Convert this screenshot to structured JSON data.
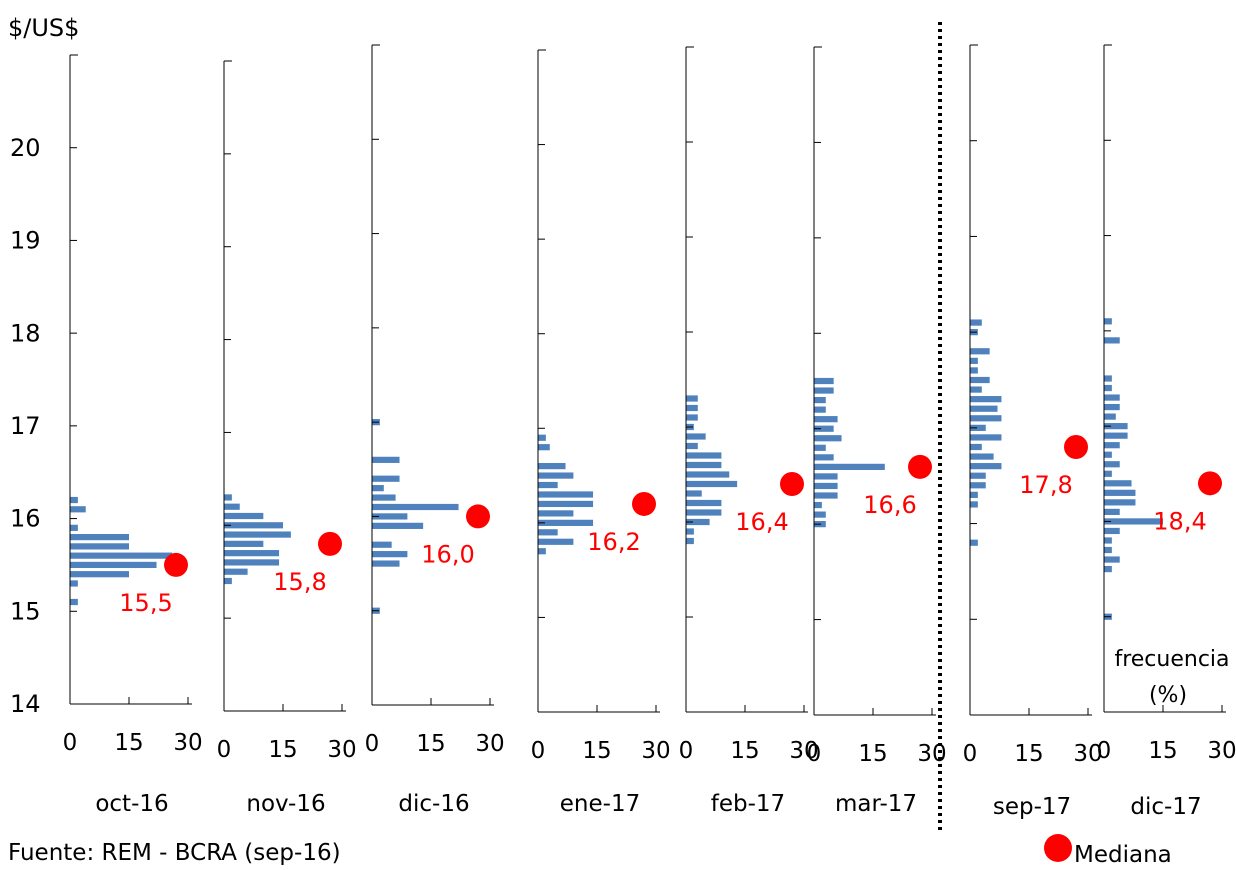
{
  "chart_data": {
    "type": "bar",
    "orientation": "horizontal-histograms",
    "ylabel": "$/US$",
    "yticks": [
      14,
      15,
      16,
      17,
      18,
      19,
      20
    ],
    "xticks": [
      0,
      15,
      30
    ],
    "xlabel": "frecuencia (%)",
    "xlabel_lines": [
      "frecuencia",
      "(%)"
    ],
    "source": "Fuente: REM - BCRA (sep-16)",
    "legend": {
      "label": "Mediana",
      "color": "#ff0000",
      "placement": "bottom-right"
    },
    "colors": {
      "bars": "#4f81bd",
      "median": "#ff0000",
      "axis": "#000000"
    },
    "panels": [
      {
        "name": "oct-16",
        "ylim": [
          14,
          21
        ],
        "median": 15.5,
        "median_label": "15,5",
        "bins": [
          {
            "y": 15.1,
            "v": 2
          },
          {
            "y": 15.3,
            "v": 2
          },
          {
            "y": 15.4,
            "v": 15
          },
          {
            "y": 15.5,
            "v": 22
          },
          {
            "y": 15.6,
            "v": 26
          },
          {
            "y": 15.7,
            "v": 15
          },
          {
            "y": 15.8,
            "v": 15
          },
          {
            "y": 15.9,
            "v": 2
          },
          {
            "y": 16.1,
            "v": 4
          },
          {
            "y": 16.2,
            "v": 2
          }
        ]
      },
      {
        "name": "nov-16",
        "ylim": [
          14,
          21
        ],
        "median": 15.8,
        "median_label": "15,8",
        "bins": [
          {
            "y": 15.4,
            "v": 2
          },
          {
            "y": 15.5,
            "v": 6
          },
          {
            "y": 15.6,
            "v": 14
          },
          {
            "y": 15.7,
            "v": 14
          },
          {
            "y": 15.8,
            "v": 10
          },
          {
            "y": 15.9,
            "v": 17
          },
          {
            "y": 16.0,
            "v": 15
          },
          {
            "y": 16.1,
            "v": 10
          },
          {
            "y": 16.2,
            "v": 4
          },
          {
            "y": 16.3,
            "v": 2
          }
        ]
      },
      {
        "name": "dic-16",
        "ylim": [
          14,
          21
        ],
        "median": 16.0,
        "median_label": "16,0",
        "bins": [
          {
            "y": 15.0,
            "v": 2
          },
          {
            "y": 15.5,
            "v": 7
          },
          {
            "y": 15.6,
            "v": 9
          },
          {
            "y": 15.7,
            "v": 5
          },
          {
            "y": 15.9,
            "v": 13
          },
          {
            "y": 16.0,
            "v": 9
          },
          {
            "y": 16.1,
            "v": 22
          },
          {
            "y": 16.2,
            "v": 6
          },
          {
            "y": 16.3,
            "v": 3
          },
          {
            "y": 16.4,
            "v": 7
          },
          {
            "y": 16.6,
            "v": 7
          },
          {
            "y": 17.0,
            "v": 2
          }
        ]
      },
      {
        "name": "ene-17",
        "ylim": [
          14,
          21
        ],
        "median": 16.2,
        "median_label": "16,2",
        "bins": [
          {
            "y": 15.7,
            "v": 2
          },
          {
            "y": 15.8,
            "v": 9
          },
          {
            "y": 15.9,
            "v": 5
          },
          {
            "y": 16.0,
            "v": 14
          },
          {
            "y": 16.1,
            "v": 9
          },
          {
            "y": 16.2,
            "v": 14
          },
          {
            "y": 16.3,
            "v": 14
          },
          {
            "y": 16.4,
            "v": 5
          },
          {
            "y": 16.5,
            "v": 9
          },
          {
            "y": 16.6,
            "v": 7
          },
          {
            "y": 16.8,
            "v": 3
          },
          {
            "y": 16.9,
            "v": 2
          }
        ]
      },
      {
        "name": "feb-17",
        "ylim": [
          14,
          21
        ],
        "median": 16.4,
        "median_label": "16,4",
        "bins": [
          {
            "y": 15.8,
            "v": 2
          },
          {
            "y": 15.9,
            "v": 2
          },
          {
            "y": 16.0,
            "v": 6
          },
          {
            "y": 16.1,
            "v": 9
          },
          {
            "y": 16.2,
            "v": 9
          },
          {
            "y": 16.3,
            "v": 4
          },
          {
            "y": 16.4,
            "v": 13
          },
          {
            "y": 16.5,
            "v": 11
          },
          {
            "y": 16.6,
            "v": 9
          },
          {
            "y": 16.7,
            "v": 9
          },
          {
            "y": 16.8,
            "v": 3
          },
          {
            "y": 16.9,
            "v": 5
          },
          {
            "y": 17.0,
            "v": 2
          },
          {
            "y": 17.1,
            "v": 3
          },
          {
            "y": 17.2,
            "v": 3
          },
          {
            "y": 17.3,
            "v": 3
          }
        ]
      },
      {
        "name": "mar-17",
        "ylim": [
          14,
          21
        ],
        "median": 16.6,
        "median_label": "16,6",
        "bins": [
          {
            "y": 16.0,
            "v": 3
          },
          {
            "y": 16.1,
            "v": 3
          },
          {
            "y": 16.2,
            "v": 2
          },
          {
            "y": 16.3,
            "v": 6
          },
          {
            "y": 16.4,
            "v": 6
          },
          {
            "y": 16.5,
            "v": 6
          },
          {
            "y": 16.6,
            "v": 18
          },
          {
            "y": 16.7,
            "v": 5
          },
          {
            "y": 16.8,
            "v": 3
          },
          {
            "y": 16.9,
            "v": 7
          },
          {
            "y": 17.0,
            "v": 5
          },
          {
            "y": 17.1,
            "v": 6
          },
          {
            "y": 17.2,
            "v": 3
          },
          {
            "y": 17.3,
            "v": 3
          },
          {
            "y": 17.4,
            "v": 5
          },
          {
            "y": 17.5,
            "v": 5
          }
        ]
      },
      {
        "name": "sep-17",
        "ylim": [
          15,
          22
        ],
        "median": 17.8,
        "median_label": "17,8",
        "bins": [
          {
            "y": 16.8,
            "v": 2
          },
          {
            "y": 17.2,
            "v": 2
          },
          {
            "y": 17.3,
            "v": 2
          },
          {
            "y": 17.4,
            "v": 4
          },
          {
            "y": 17.5,
            "v": 4
          },
          {
            "y": 17.6,
            "v": 8
          },
          {
            "y": 17.7,
            "v": 6
          },
          {
            "y": 17.8,
            "v": 3
          },
          {
            "y": 17.9,
            "v": 8
          },
          {
            "y": 18.0,
            "v": 4
          },
          {
            "y": 18.1,
            "v": 8
          },
          {
            "y": 18.2,
            "v": 7
          },
          {
            "y": 18.3,
            "v": 8
          },
          {
            "y": 18.4,
            "v": 3
          },
          {
            "y": 18.5,
            "v": 5
          },
          {
            "y": 18.6,
            "v": 2
          },
          {
            "y": 18.7,
            "v": 2
          },
          {
            "y": 18.8,
            "v": 5
          },
          {
            "y": 19.0,
            "v": 2
          },
          {
            "y": 19.1,
            "v": 3
          }
        ]
      },
      {
        "name": "dic-17",
        "ylim": [
          16,
          23
        ],
        "median": 18.4,
        "median_label": "18,4",
        "bins": [
          {
            "y": 17.0,
            "v": 2
          },
          {
            "y": 17.5,
            "v": 2
          },
          {
            "y": 17.6,
            "v": 4
          },
          {
            "y": 17.7,
            "v": 2
          },
          {
            "y": 17.8,
            "v": 2
          },
          {
            "y": 17.9,
            "v": 4
          },
          {
            "y": 18.0,
            "v": 15
          },
          {
            "y": 18.1,
            "v": 4
          },
          {
            "y": 18.2,
            "v": 8
          },
          {
            "y": 18.3,
            "v": 8
          },
          {
            "y": 18.4,
            "v": 7
          },
          {
            "y": 18.5,
            "v": 2
          },
          {
            "y": 18.6,
            "v": 4
          },
          {
            "y": 18.7,
            "v": 2
          },
          {
            "y": 18.8,
            "v": 4
          },
          {
            "y": 18.9,
            "v": 6
          },
          {
            "y": 19.0,
            "v": 6
          },
          {
            "y": 19.1,
            "v": 3
          },
          {
            "y": 19.2,
            "v": 4
          },
          {
            "y": 19.3,
            "v": 4
          },
          {
            "y": 19.4,
            "v": 2
          },
          {
            "y": 19.5,
            "v": 2
          },
          {
            "y": 19.9,
            "v": 4
          },
          {
            "y": 20.1,
            "v": 2
          }
        ]
      }
    ]
  }
}
